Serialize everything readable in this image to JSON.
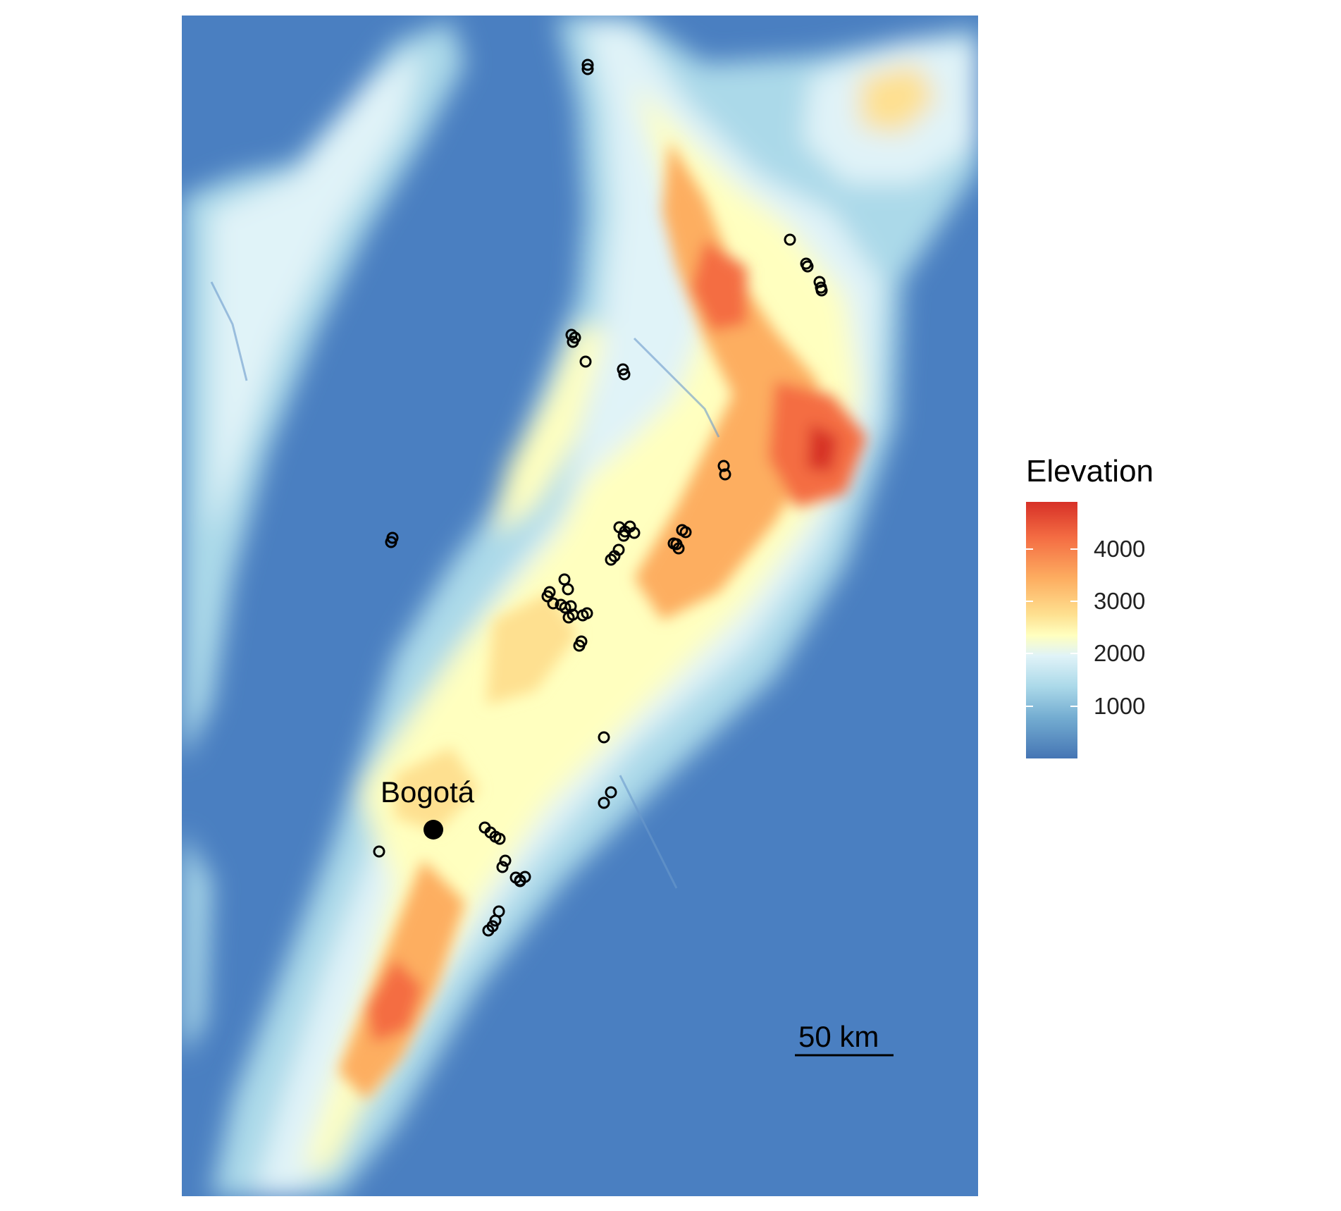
{
  "map": {
    "city": {
      "name": "Bogotá"
    },
    "scale_bar": {
      "label": "50 km"
    },
    "colors": {
      "lowland": "#4a7fc1",
      "low": "#74add1",
      "mid_low": "#abd9e9",
      "mid": "#e0f3f8",
      "high": "#ffffbf",
      "higher": "#fee090",
      "peak_low": "#fdae61",
      "peak": "#f46d43",
      "summit": "#d73027",
      "markers": "#000000"
    }
  },
  "legend": {
    "title": "Elevation",
    "min": 0,
    "max": 4900,
    "ticks": [
      {
        "value": 4000,
        "label": "4000"
      },
      {
        "value": 3000,
        "label": "3000"
      },
      {
        "value": 2000,
        "label": "2000"
      },
      {
        "value": 1000,
        "label": "1000"
      }
    ]
  }
}
